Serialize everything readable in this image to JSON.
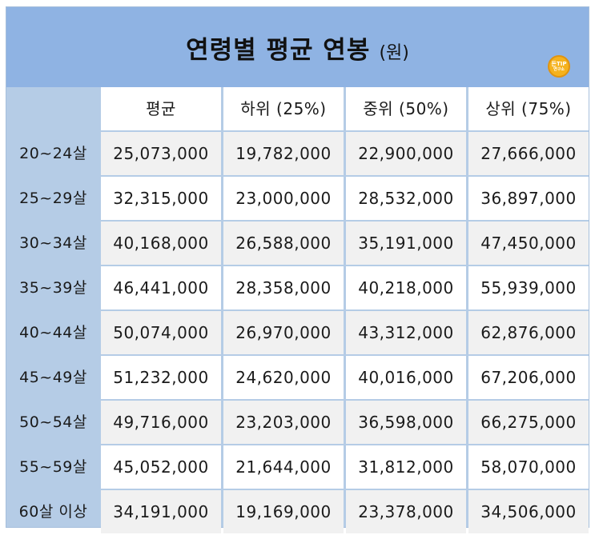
{
  "title": {
    "main": "연령별 평균 연봉",
    "unit": "(원)"
  },
  "badge": {
    "line1": "돈TIP",
    "line2": "연구소"
  },
  "columns": [
    "평균",
    "하위 (25%)",
    "중위 (50%)",
    "상위 (75%)"
  ],
  "rows": [
    {
      "age": "20~24살",
      "values": [
        "25,073,000",
        "19,782,000",
        "22,900,000",
        "27,666,000"
      ]
    },
    {
      "age": "25~29살",
      "values": [
        "32,315,000",
        "23,000,000",
        "28,532,000",
        "36,897,000"
      ]
    },
    {
      "age": "30~34살",
      "values": [
        "40,168,000",
        "26,588,000",
        "35,191,000",
        "47,450,000"
      ]
    },
    {
      "age": "35~39살",
      "values": [
        "46,441,000",
        "28,358,000",
        "40,218,000",
        "55,939,000"
      ]
    },
    {
      "age": "40~44살",
      "values": [
        "50,074,000",
        "26,970,000",
        "43,312,000",
        "62,876,000"
      ]
    },
    {
      "age": "45~49살",
      "values": [
        "51,232,000",
        "24,620,000",
        "40,016,000",
        "67,206,000"
      ]
    },
    {
      "age": "50~54살",
      "values": [
        "49,716,000",
        "23,203,000",
        "36,598,000",
        "66,275,000"
      ]
    },
    {
      "age": "55~59살",
      "values": [
        "45,052,000",
        "21,644,000",
        "31,812,000",
        "58,070,000"
      ]
    },
    {
      "age": "60살 이상",
      "values": [
        "34,191,000",
        "19,169,000",
        "23,378,000",
        "34,506,000"
      ]
    }
  ]
}
